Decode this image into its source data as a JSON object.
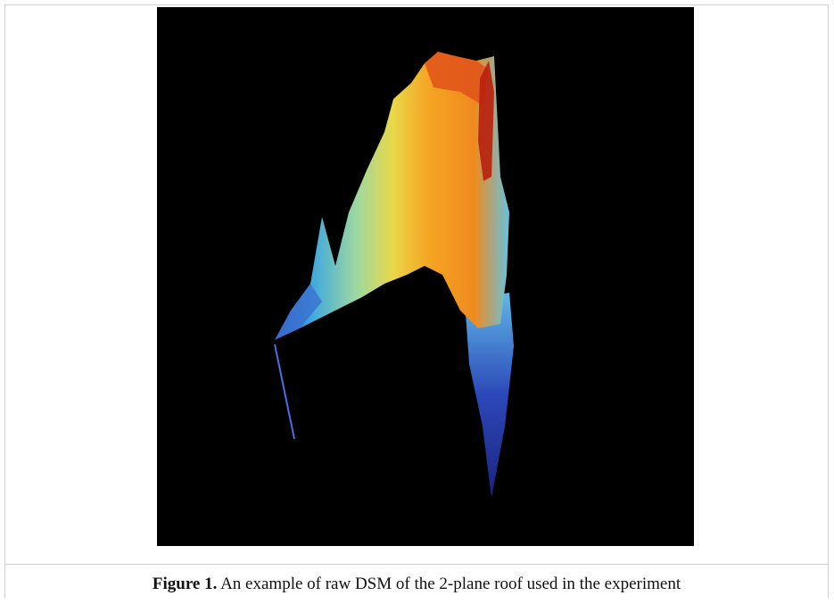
{
  "figure": {
    "label": "Figure 1.",
    "caption": "An example of raw DSM of the 2-plane roof used in the experiment"
  }
}
